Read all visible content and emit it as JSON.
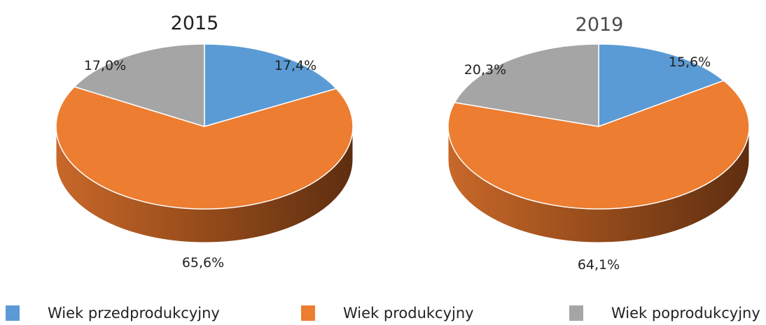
{
  "chart_data": [
    {
      "type": "pie",
      "title": "2015",
      "slices": [
        {
          "name": "Wiek przedprodukcyjny",
          "value": 17.4,
          "label": "17,4%",
          "color": "#5B9BD5"
        },
        {
          "name": "Wiek produkcyjny",
          "value": 65.6,
          "label": "65,6%",
          "color": "#ED7D31"
        },
        {
          "name": "Wiek poprodukcyjny",
          "value": 17.0,
          "label": "17,0%",
          "color": "#A5A5A5"
        }
      ]
    },
    {
      "type": "pie",
      "title": "2019",
      "slices": [
        {
          "name": "Wiek przedprodukcyjny",
          "value": 15.6,
          "label": "15,6%",
          "color": "#5B9BD5"
        },
        {
          "name": "Wiek produkcyjny",
          "value": 64.1,
          "label": "64,1%",
          "color": "#ED7D31"
        },
        {
          "name": "Wiek poprodukcyjny",
          "value": 20.3,
          "label": "20,3%",
          "color": "#A5A5A5"
        }
      ]
    }
  ],
  "legend": {
    "placement": "bottom",
    "items": [
      {
        "label": "Wiek przedprodukcyjny",
        "color": "#5B9BD5"
      },
      {
        "label": "Wiek produkcyjny",
        "color": "#ED7D31"
      },
      {
        "label": "Wiek poprodukcyjny",
        "color": "#A5A5A5"
      }
    ]
  }
}
